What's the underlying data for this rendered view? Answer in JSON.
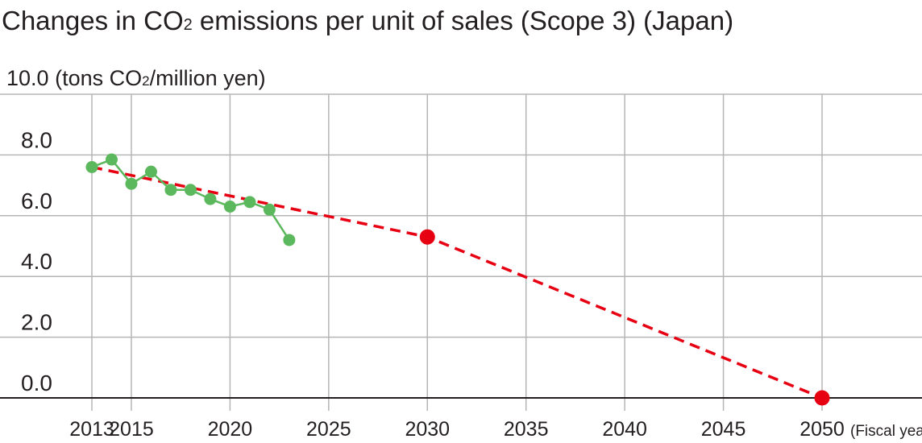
{
  "title": {
    "pre": "Changes in CO",
    "sub": "2",
    "post": " emissions per unit of sales (Scope 3) (Japan)"
  },
  "colors": {
    "actual": "#5cb85c",
    "target": "#e60012",
    "grid": "#b5b5b5",
    "axis": "#231f20",
    "text": "#231f20"
  },
  "chart_data": {
    "type": "line",
    "y_unit": {
      "value": "10.0",
      "pre": "(tons CO",
      "sub": "2",
      "post": "/million yen)"
    },
    "x_unit": "(Fiscal year)",
    "ylim": [
      0,
      10
    ],
    "xlim": [
      2013,
      2050
    ],
    "y_ticks": [
      "0.0",
      "2.0",
      "4.0",
      "6.0",
      "8.0"
    ],
    "x_ticks": [
      "2013",
      "2015",
      "2020",
      "2025",
      "2030",
      "2035",
      "2040",
      "2045",
      "2050"
    ],
    "x_gridlines": [
      2013,
      2015,
      2020,
      2025,
      2030,
      2035,
      2040,
      2045,
      2050
    ],
    "y_gridlines": [
      0,
      2,
      4,
      6,
      8,
      10
    ],
    "series": [
      {
        "style": "solid-line-with-markers",
        "color": "#5cb85c",
        "x": [
          2013,
          2014,
          2015,
          2016,
          2017,
          2018,
          2019,
          2020,
          2021,
          2022,
          2023
        ],
        "y": [
          7.6,
          7.85,
          7.05,
          7.45,
          6.85,
          6.85,
          6.55,
          6.3,
          6.45,
          6.2,
          5.2
        ]
      },
      {
        "style": "dashed-line",
        "color": "#e60012",
        "x": [
          2013,
          2030,
          2050
        ],
        "y": [
          7.6,
          5.3,
          0.0
        ],
        "markers_at": [
          2030,
          2050
        ]
      }
    ],
    "grid": true,
    "legend": "none"
  }
}
